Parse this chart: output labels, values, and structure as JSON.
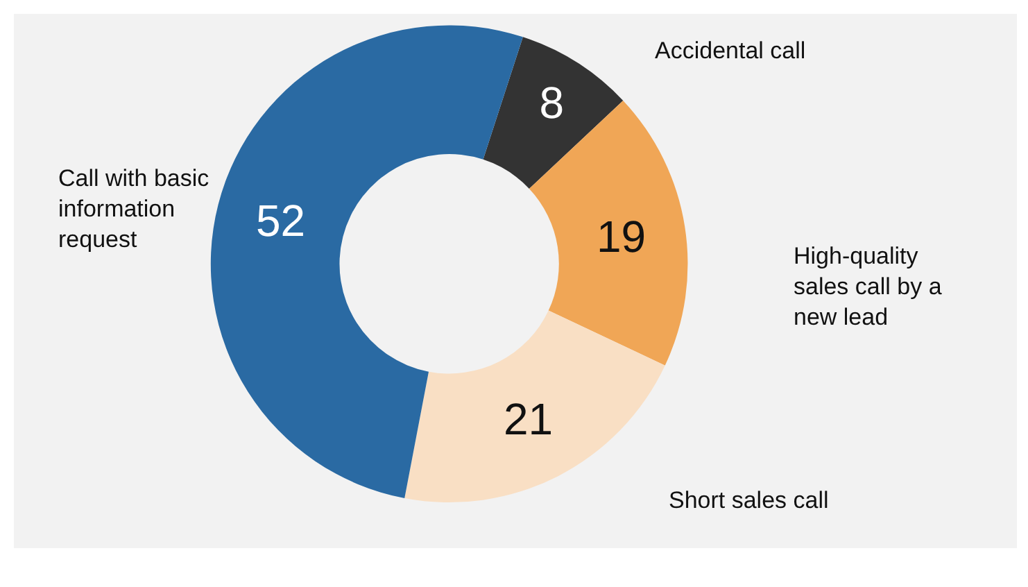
{
  "chart_data": {
    "type": "donut",
    "categories": [
      "Accidental call",
      "High-quality sales call by a new lead",
      "Short sales call",
      "Call with basic information request"
    ],
    "values": [
      8,
      19,
      21,
      52
    ],
    "colors": [
      "#333333",
      "#f0a656",
      "#f9dfc4",
      "#2a6aa3"
    ],
    "data_labels": true,
    "legend": false
  }
}
